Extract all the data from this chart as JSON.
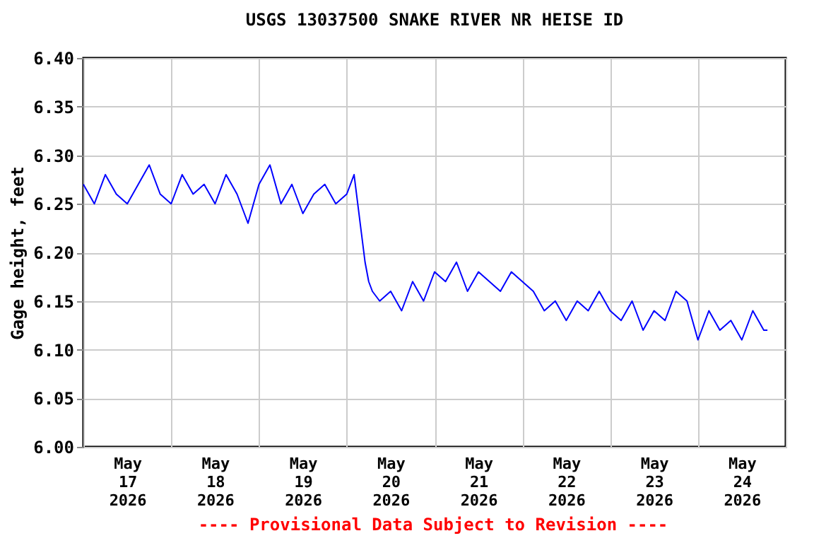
{
  "chart_data": {
    "type": "line",
    "title": "USGS 13037500 SNAKE RIVER NR HEISE ID",
    "ylabel": "Gage height, feet",
    "annotations": [
      "---- Provisional Data Subject to Revision ----"
    ],
    "x": [
      "2026-05-17T00:00",
      "2026-05-17T03:00",
      "2026-05-17T06:00",
      "2026-05-17T09:00",
      "2026-05-17T12:00",
      "2026-05-17T15:00",
      "2026-05-17T18:00",
      "2026-05-17T21:00",
      "2026-05-18T00:00",
      "2026-05-18T03:00",
      "2026-05-18T06:00",
      "2026-05-18T09:00",
      "2026-05-18T12:00",
      "2026-05-18T15:00",
      "2026-05-18T18:00",
      "2026-05-18T21:00",
      "2026-05-19T00:00",
      "2026-05-19T03:00",
      "2026-05-19T06:00",
      "2026-05-19T09:00",
      "2026-05-19T12:00",
      "2026-05-19T15:00",
      "2026-05-19T18:00",
      "2026-05-19T21:00",
      "2026-05-20T00:00",
      "2026-05-20T02:00",
      "2026-05-20T03:00",
      "2026-05-20T04:00",
      "2026-05-20T05:00",
      "2026-05-20T06:00",
      "2026-05-20T07:00",
      "2026-05-20T09:00",
      "2026-05-20T12:00",
      "2026-05-20T15:00",
      "2026-05-20T18:00",
      "2026-05-20T21:00",
      "2026-05-21T00:00",
      "2026-05-21T03:00",
      "2026-05-21T06:00",
      "2026-05-21T09:00",
      "2026-05-21T12:00",
      "2026-05-21T15:00",
      "2026-05-21T18:00",
      "2026-05-21T21:00",
      "2026-05-22T00:00",
      "2026-05-22T03:00",
      "2026-05-22T06:00",
      "2026-05-22T09:00",
      "2026-05-22T12:00",
      "2026-05-22T15:00",
      "2026-05-22T18:00",
      "2026-05-22T21:00",
      "2026-05-23T00:00",
      "2026-05-23T03:00",
      "2026-05-23T06:00",
      "2026-05-23T09:00",
      "2026-05-23T12:00",
      "2026-05-23T15:00",
      "2026-05-23T18:00",
      "2026-05-23T21:00",
      "2026-05-24T00:00",
      "2026-05-24T03:00",
      "2026-05-24T06:00",
      "2026-05-24T09:00",
      "2026-05-24T12:00",
      "2026-05-24T15:00",
      "2026-05-24T18:00",
      "2026-05-24T19:00"
    ],
    "series": [
      {
        "color": "#0000ff",
        "values": [
          6.27,
          6.25,
          6.28,
          6.26,
          6.25,
          6.27,
          6.29,
          6.26,
          6.25,
          6.28,
          6.26,
          6.27,
          6.25,
          6.28,
          6.26,
          6.23,
          6.27,
          6.29,
          6.25,
          6.27,
          6.24,
          6.26,
          6.27,
          6.25,
          6.26,
          6.28,
          6.25,
          6.22,
          6.19,
          6.17,
          6.16,
          6.15,
          6.16,
          6.14,
          6.17,
          6.15,
          6.18,
          6.17,
          6.19,
          6.16,
          6.18,
          6.17,
          6.16,
          6.18,
          6.17,
          6.16,
          6.14,
          6.15,
          6.13,
          6.15,
          6.14,
          6.16,
          6.14,
          6.13,
          6.15,
          6.12,
          6.14,
          6.13,
          6.16,
          6.15,
          6.11,
          6.14,
          6.12,
          6.13,
          6.11,
          6.14,
          6.12,
          6.12
        ]
      }
    ],
    "xlim": [
      "2026-05-17T00:00",
      "2026-05-25T00:00"
    ],
    "xticks": [
      {
        "value": "2026-05-17T00:00",
        "label": null
      },
      {
        "value": "2026-05-17T12:00",
        "label": "May 17 2026"
      },
      {
        "value": "2026-05-18T00:00",
        "label": null
      },
      {
        "value": "2026-05-18T12:00",
        "label": "May 18 2026"
      },
      {
        "value": "2026-05-19T00:00",
        "label": null
      },
      {
        "value": "2026-05-19T12:00",
        "label": "May 19 2026"
      },
      {
        "value": "2026-05-20T00:00",
        "label": null
      },
      {
        "value": "2026-05-20T12:00",
        "label": "May 20 2026"
      },
      {
        "value": "2026-05-21T00:00",
        "label": null
      },
      {
        "value": "2026-05-21T12:00",
        "label": "May 21 2026"
      },
      {
        "value": "2026-05-22T00:00",
        "label": null
      },
      {
        "value": "2026-05-22T12:00",
        "label": "May 22 2026"
      },
      {
        "value": "2026-05-23T00:00",
        "label": null
      },
      {
        "value": "2026-05-23T12:00",
        "label": "May 23 2026"
      },
      {
        "value": "2026-05-24T00:00",
        "label": null
      },
      {
        "value": "2026-05-24T12:00",
        "label": "May 24 2026"
      },
      {
        "value": "2026-05-25T00:00",
        "label": null
      }
    ],
    "ylim": [
      6.0,
      6.4
    ],
    "yticks": [
      {
        "value": 6.0,
        "label": "6.00"
      },
      {
        "value": 6.05,
        "label": "6.05"
      },
      {
        "value": 6.1,
        "label": "6.10"
      },
      {
        "value": 6.15,
        "label": "6.15"
      },
      {
        "value": 6.2,
        "label": "6.20"
      },
      {
        "value": 6.25,
        "label": "6.25"
      },
      {
        "value": 6.3,
        "label": "6.30"
      },
      {
        "value": 6.35,
        "label": "6.35"
      },
      {
        "value": 6.4,
        "label": "6.40"
      }
    ],
    "grid": true,
    "legend": false,
    "marker": "none",
    "line_style": "solid"
  }
}
